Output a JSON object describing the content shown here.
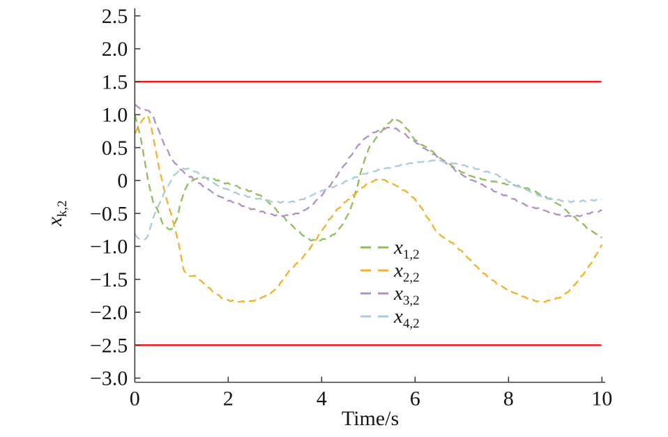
{
  "chart_data": {
    "type": "line",
    "title": "",
    "xlabel": "Time/s",
    "ylabel_base": "x",
    "ylabel_sub": "k,2",
    "xlim": [
      0,
      10
    ],
    "ylim": [
      -3.0,
      2.5
    ],
    "grid": false,
    "legend_position": "center-right",
    "x_ticks": [
      {
        "v": 0,
        "label": "0"
      },
      {
        "v": 2,
        "label": "2"
      },
      {
        "v": 4,
        "label": "4"
      },
      {
        "v": 6,
        "label": "6"
      },
      {
        "v": 8,
        "label": "8"
      },
      {
        "v": 10,
        "label": "10"
      }
    ],
    "y_ticks": [
      {
        "v": 2.5,
        "label": "2.5"
      },
      {
        "v": 2.0,
        "label": "2.0"
      },
      {
        "v": 1.5,
        "label": "1.5"
      },
      {
        "v": 1.0,
        "label": "1.0"
      },
      {
        "v": 0.5,
        "label": "0.5"
      },
      {
        "v": 0.0,
        "label": "0"
      },
      {
        "v": -0.5,
        "label": "−0.5"
      },
      {
        "v": -1.0,
        "label": "−1.0"
      },
      {
        "v": -1.5,
        "label": "−1.5"
      },
      {
        "v": -2.0,
        "label": "−2.0"
      },
      {
        "v": -2.5,
        "label": "−2.5"
      },
      {
        "v": -3.0,
        "label": "−3.0"
      }
    ],
    "bounds": {
      "color": "#ee1c12",
      "values": [
        1.5,
        -2.5
      ]
    },
    "axis_color": "#3c3c3c",
    "series": [
      {
        "label_base": "x",
        "label_sub": "1,2",
        "color": "#8dc05a",
        "style": "dashed",
        "points": [
          [
            0,
            1.0
          ],
          [
            0.1,
            0.73
          ],
          [
            0.2,
            0.35
          ],
          [
            0.3,
            -0.05
          ],
          [
            0.4,
            -0.33
          ],
          [
            0.5,
            -0.47
          ],
          [
            0.6,
            -0.65
          ],
          [
            0.7,
            -0.72
          ],
          [
            0.8,
            -0.73
          ],
          [
            0.9,
            -0.57
          ],
          [
            1.0,
            -0.3
          ],
          [
            1.1,
            -0.1
          ],
          [
            1.2,
            -0.01
          ],
          [
            1.35,
            0.03
          ],
          [
            1.5,
            0.04
          ],
          [
            1.7,
            0.02
          ],
          [
            1.9,
            -0.03
          ],
          [
            2.1,
            -0.07
          ],
          [
            2.3,
            -0.12
          ],
          [
            2.5,
            -0.17
          ],
          [
            2.7,
            -0.24
          ],
          [
            2.9,
            -0.36
          ],
          [
            3.1,
            -0.5
          ],
          [
            3.3,
            -0.64
          ],
          [
            3.5,
            -0.77
          ],
          [
            3.7,
            -0.88
          ],
          [
            3.9,
            -0.91
          ],
          [
            4.1,
            -0.88
          ],
          [
            4.25,
            -0.82
          ],
          [
            4.4,
            -0.71
          ],
          [
            4.55,
            -0.54
          ],
          [
            4.65,
            -0.36
          ],
          [
            4.75,
            -0.12
          ],
          [
            4.85,
            0.15
          ],
          [
            5.0,
            0.47
          ],
          [
            5.15,
            0.63
          ],
          [
            5.3,
            0.77
          ],
          [
            5.45,
            0.88
          ],
          [
            5.55,
            0.94
          ],
          [
            5.65,
            0.91
          ],
          [
            5.8,
            0.81
          ],
          [
            6.0,
            0.62
          ],
          [
            6.2,
            0.52
          ],
          [
            6.4,
            0.42
          ],
          [
            6.6,
            0.3
          ],
          [
            6.8,
            0.22
          ],
          [
            7.0,
            0.13
          ],
          [
            7.3,
            0.04
          ],
          [
            7.6,
            0.0
          ],
          [
            7.9,
            -0.05
          ],
          [
            8.2,
            -0.08
          ],
          [
            8.5,
            -0.15
          ],
          [
            8.8,
            -0.25
          ],
          [
            9.1,
            -0.38
          ],
          [
            9.3,
            -0.5
          ],
          [
            9.5,
            -0.61
          ],
          [
            9.75,
            -0.75
          ],
          [
            10,
            -0.86
          ]
        ]
      },
      {
        "label_base": "x",
        "label_sub": "2,2",
        "color": "#f3b02a",
        "style": "dashed",
        "points": [
          [
            0,
            0.72
          ],
          [
            0.1,
            0.85
          ],
          [
            0.2,
            0.95
          ],
          [
            0.28,
            0.97
          ],
          [
            0.35,
            0.82
          ],
          [
            0.45,
            0.45
          ],
          [
            0.55,
            0.1
          ],
          [
            0.65,
            -0.2
          ],
          [
            0.75,
            -0.45
          ],
          [
            0.85,
            -0.7
          ],
          [
            0.95,
            -1.0
          ],
          [
            1.05,
            -1.35
          ],
          [
            1.15,
            -1.44
          ],
          [
            1.3,
            -1.46
          ],
          [
            1.5,
            -1.58
          ],
          [
            1.7,
            -1.7
          ],
          [
            1.9,
            -1.79
          ],
          [
            2.1,
            -1.83
          ],
          [
            2.3,
            -1.84
          ],
          [
            2.5,
            -1.83
          ],
          [
            2.7,
            -1.78
          ],
          [
            2.9,
            -1.72
          ],
          [
            3.1,
            -1.58
          ],
          [
            3.3,
            -1.38
          ],
          [
            3.5,
            -1.24
          ],
          [
            3.7,
            -1.08
          ],
          [
            3.9,
            -0.87
          ],
          [
            4.1,
            -0.66
          ],
          [
            4.3,
            -0.47
          ],
          [
            4.5,
            -0.33
          ],
          [
            4.7,
            -0.21
          ],
          [
            4.9,
            -0.09
          ],
          [
            5.1,
            -0.01
          ],
          [
            5.3,
            0.01
          ],
          [
            5.5,
            -0.04
          ],
          [
            5.7,
            -0.12
          ],
          [
            5.9,
            -0.22
          ],
          [
            6.1,
            -0.38
          ],
          [
            6.3,
            -0.6
          ],
          [
            6.5,
            -0.8
          ],
          [
            6.8,
            -0.95
          ],
          [
            7.0,
            -1.08
          ],
          [
            7.25,
            -1.26
          ],
          [
            7.5,
            -1.43
          ],
          [
            7.75,
            -1.56
          ],
          [
            8.0,
            -1.66
          ],
          [
            8.3,
            -1.76
          ],
          [
            8.6,
            -1.83
          ],
          [
            8.9,
            -1.82
          ],
          [
            9.2,
            -1.73
          ],
          [
            9.5,
            -1.51
          ],
          [
            9.8,
            -1.22
          ],
          [
            10,
            -0.97
          ]
        ]
      },
      {
        "label_base": "x",
        "label_sub": "3,2",
        "color": "#b191c5",
        "style": "dashed",
        "points": [
          [
            0,
            1.15
          ],
          [
            0.1,
            1.1
          ],
          [
            0.2,
            1.07
          ],
          [
            0.3,
            1.06
          ],
          [
            0.4,
            0.95
          ],
          [
            0.5,
            0.78
          ],
          [
            0.6,
            0.6
          ],
          [
            0.7,
            0.45
          ],
          [
            0.8,
            0.32
          ],
          [
            0.9,
            0.23
          ],
          [
            1.0,
            0.16
          ],
          [
            1.1,
            0.09
          ],
          [
            1.2,
            0.05
          ],
          [
            1.35,
            -0.03
          ],
          [
            1.5,
            -0.1
          ],
          [
            1.7,
            -0.19
          ],
          [
            1.9,
            -0.27
          ],
          [
            2.1,
            -0.33
          ],
          [
            2.3,
            -0.38
          ],
          [
            2.5,
            -0.43
          ],
          [
            2.7,
            -0.47
          ],
          [
            2.9,
            -0.51
          ],
          [
            3.1,
            -0.53
          ],
          [
            3.3,
            -0.53
          ],
          [
            3.5,
            -0.49
          ],
          [
            3.7,
            -0.42
          ],
          [
            3.85,
            -0.33
          ],
          [
            4.0,
            -0.22
          ],
          [
            4.15,
            -0.1
          ],
          [
            4.3,
            0.05
          ],
          [
            4.45,
            0.2
          ],
          [
            4.6,
            0.35
          ],
          [
            4.75,
            0.5
          ],
          [
            4.9,
            0.62
          ],
          [
            5.1,
            0.72
          ],
          [
            5.3,
            0.78
          ],
          [
            5.5,
            0.8
          ],
          [
            5.7,
            0.74
          ],
          [
            5.9,
            0.64
          ],
          [
            6.1,
            0.54
          ],
          [
            6.3,
            0.44
          ],
          [
            6.5,
            0.35
          ],
          [
            6.7,
            0.25
          ],
          [
            6.9,
            0.14
          ],
          [
            7.1,
            0.05
          ],
          [
            7.3,
            -0.02
          ],
          [
            7.5,
            -0.09
          ],
          [
            7.7,
            -0.16
          ],
          [
            7.9,
            -0.22
          ],
          [
            8.1,
            -0.28
          ],
          [
            8.3,
            -0.35
          ],
          [
            8.5,
            -0.4
          ],
          [
            8.7,
            -0.44
          ],
          [
            8.9,
            -0.49
          ],
          [
            9.1,
            -0.52
          ],
          [
            9.3,
            -0.54
          ],
          [
            9.5,
            -0.54
          ],
          [
            9.7,
            -0.5
          ],
          [
            10,
            -0.46
          ]
        ]
      },
      {
        "label_base": "x",
        "label_sub": "4,2",
        "color": "#a9ccdf",
        "style": "dashed",
        "points": [
          [
            0,
            -0.82
          ],
          [
            0.1,
            -0.88
          ],
          [
            0.2,
            -0.9
          ],
          [
            0.3,
            -0.8
          ],
          [
            0.4,
            -0.55
          ],
          [
            0.5,
            -0.4
          ],
          [
            0.6,
            -0.23
          ],
          [
            0.7,
            -0.1
          ],
          [
            0.8,
            0.03
          ],
          [
            0.9,
            0.12
          ],
          [
            1.0,
            0.17
          ],
          [
            1.1,
            0.18
          ],
          [
            1.25,
            0.15
          ],
          [
            1.4,
            0.09
          ],
          [
            1.6,
            0.0
          ],
          [
            1.8,
            -0.08
          ],
          [
            2.0,
            -0.14
          ],
          [
            2.2,
            -0.2
          ],
          [
            2.4,
            -0.24
          ],
          [
            2.6,
            -0.27
          ],
          [
            2.8,
            -0.3
          ],
          [
            3.0,
            -0.32
          ],
          [
            3.2,
            -0.33
          ],
          [
            3.4,
            -0.32
          ],
          [
            3.6,
            -0.28
          ],
          [
            3.8,
            -0.22
          ],
          [
            4.0,
            -0.16
          ],
          [
            4.2,
            -0.11
          ],
          [
            4.4,
            -0.05
          ],
          [
            4.6,
            0.01
          ],
          [
            4.8,
            0.07
          ],
          [
            5.0,
            0.12
          ],
          [
            5.3,
            0.17
          ],
          [
            5.6,
            0.22
          ],
          [
            5.9,
            0.26
          ],
          [
            6.2,
            0.29
          ],
          [
            6.4,
            0.3
          ],
          [
            6.6,
            0.29
          ],
          [
            6.9,
            0.25
          ],
          [
            7.2,
            0.2
          ],
          [
            7.5,
            0.14
          ],
          [
            7.8,
            0.07
          ],
          [
            8.0,
            -0.01
          ],
          [
            8.2,
            -0.09
          ],
          [
            8.4,
            -0.15
          ],
          [
            8.6,
            -0.21
          ],
          [
            8.8,
            -0.26
          ],
          [
            9.0,
            -0.29
          ],
          [
            9.2,
            -0.31
          ],
          [
            9.4,
            -0.32
          ],
          [
            9.6,
            -0.31
          ],
          [
            9.8,
            -0.3
          ],
          [
            10,
            -0.28
          ]
        ]
      }
    ]
  }
}
